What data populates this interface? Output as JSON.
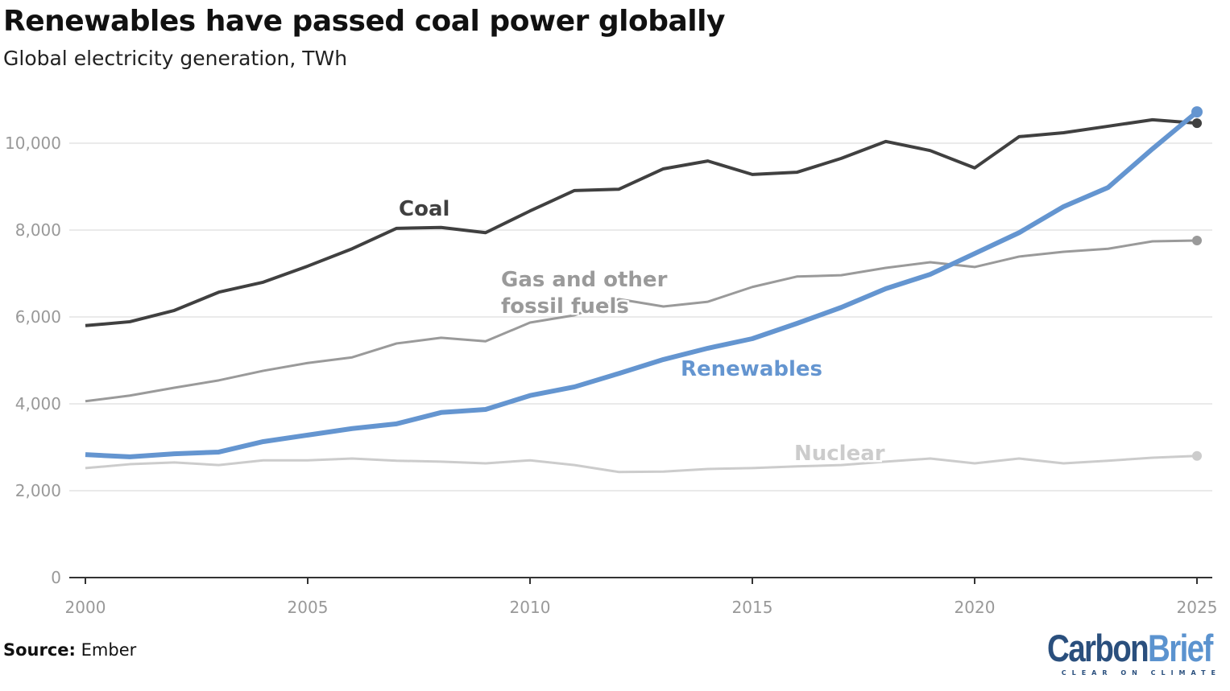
{
  "chart_data": {
    "type": "line",
    "title": "Renewables have passed coal power globally",
    "subtitle": "Global electricity generation, TWh",
    "xlabel": "",
    "ylabel": "",
    "xlim": [
      2000,
      2025
    ],
    "ylim": [
      0,
      10000
    ],
    "x_ticks": [
      "2000",
      "2005",
      "2010",
      "2015",
      "2020",
      "2025"
    ],
    "y_ticks": [
      "0",
      "2,000",
      "4,000",
      "6,000",
      "8,000",
      "10,000"
    ],
    "grid": "horizontal",
    "legend": "none (inline labels)",
    "x": [
      2000,
      2001,
      2002,
      2003,
      2004,
      2005,
      2006,
      2007,
      2008,
      2009,
      2010,
      2011,
      2012,
      2013,
      2014,
      2015,
      2016,
      2017,
      2018,
      2019,
      2020,
      2021,
      2022,
      2023,
      2024,
      2025
    ],
    "series": [
      {
        "name": "Coal",
        "color": "#404040",
        "label_lines": [
          "Coal"
        ],
        "values": [
          5800,
          5890,
          6150,
          6570,
          6800,
          7170,
          7570,
          8040,
          8060,
          7940,
          8440,
          8910,
          8940,
          9410,
          9590,
          9280,
          9330,
          9650,
          10040,
          9830,
          9430,
          10150,
          10240,
          10390,
          10540,
          10460
        ]
      },
      {
        "name": "Gas and other fossil fuels",
        "color": "#9a9a9a",
        "label_lines": [
          "Gas and other",
          "fossil fuels"
        ],
        "values": [
          4060,
          4190,
          4370,
          4540,
          4760,
          4940,
          5070,
          5390,
          5520,
          5440,
          5870,
          6040,
          6410,
          6240,
          6350,
          6690,
          6930,
          6960,
          7130,
          7260,
          7150,
          7390,
          7500,
          7570,
          7740,
          7760
        ]
      },
      {
        "name": "Renewables",
        "color": "#6495d0",
        "label_lines": [
          "Renewables"
        ],
        "values": [
          2830,
          2780,
          2850,
          2890,
          3130,
          3280,
          3430,
          3540,
          3800,
          3870,
          4190,
          4390,
          4700,
          5020,
          5280,
          5500,
          5850,
          6220,
          6650,
          6980,
          7460,
          7940,
          8540,
          8980,
          9870,
          10720
        ]
      },
      {
        "name": "Nuclear",
        "color": "#cccccc",
        "label_lines": [
          "Nuclear"
        ],
        "values": [
          2520,
          2610,
          2650,
          2590,
          2700,
          2700,
          2740,
          2690,
          2670,
          2630,
          2700,
          2590,
          2430,
          2440,
          2500,
          2520,
          2560,
          2590,
          2670,
          2740,
          2630,
          2740,
          2630,
          2690,
          2760,
          2800
        ]
      }
    ]
  },
  "source": {
    "label": "Source:",
    "value": "Ember"
  },
  "logo": {
    "part1": "Carbon",
    "part2": "Brief",
    "tagline": "CLEAR ON CLIMATE"
  }
}
